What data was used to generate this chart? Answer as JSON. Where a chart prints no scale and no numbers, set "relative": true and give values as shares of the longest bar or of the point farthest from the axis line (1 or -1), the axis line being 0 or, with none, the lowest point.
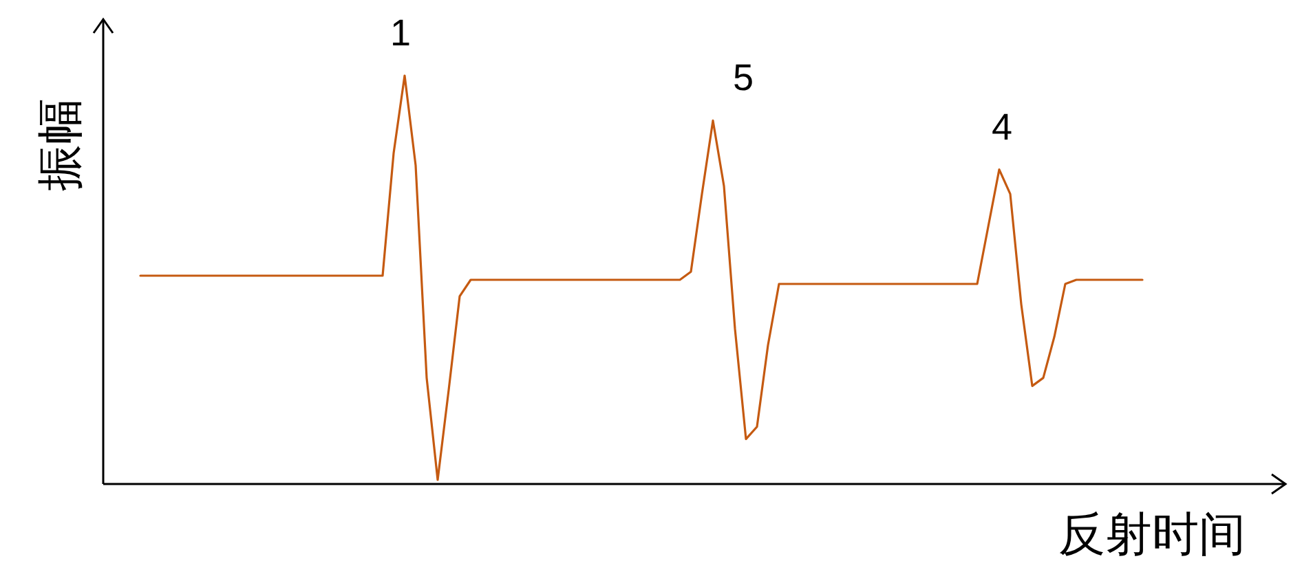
{
  "chart_data": {
    "type": "line",
    "xlabel": "反射时间",
    "ylabel": "振幅",
    "annotations": [
      "1",
      "5",
      "4"
    ],
    "categories": [
      null,
      null,
      null,
      null,
      null,
      null,
      null,
      null,
      null,
      null,
      null,
      null,
      null,
      null,
      null,
      null,
      null,
      null,
      null,
      null,
      null,
      null,
      null,
      null,
      null,
      null,
      null,
      null,
      null,
      null,
      null,
      null,
      null,
      null,
      null,
      null,
      null,
      null,
      null,
      null,
      null,
      null,
      null,
      null,
      null,
      null,
      null,
      null,
      null,
      null,
      null,
      null,
      null,
      null,
      null,
      null,
      null,
      null,
      null,
      null,
      null,
      null,
      null,
      null,
      null,
      null,
      null,
      null,
      null,
      null,
      null,
      null,
      null,
      null,
      null,
      null,
      null,
      null,
      null,
      null,
      null,
      null,
      null,
      null,
      null,
      null,
      null,
      null,
      null,
      null,
      null,
      null
    ],
    "series": [
      {
        "color": "#c55a11",
        "values": [
          0.51,
          0.51,
          0.51,
          0.51,
          0.51,
          0.51,
          0.51,
          0.51,
          0.51,
          0.51,
          0.51,
          0.51,
          0.51,
          0.51,
          0.51,
          0.51,
          0.51,
          0.51,
          0.51,
          0.51,
          0.51,
          0.51,
          0.51,
          0.81,
          1,
          0.78,
          0.26,
          0.01,
          0.23,
          0.46,
          0.5,
          0.5,
          0.5,
          0.5,
          0.5,
          0.5,
          0.5,
          0.5,
          0.5,
          0.5,
          0.5,
          0.5,
          0.5,
          0.5,
          0.5,
          0.5,
          0.5,
          0.5,
          0.5,
          0.5,
          0.52,
          0.71,
          0.89,
          0.73,
          0.38,
          0.11,
          0.14,
          0.34,
          0.49,
          0.49,
          0.49,
          0.49,
          0.49,
          0.49,
          0.49,
          0.49,
          0.49,
          0.49,
          0.49,
          0.49,
          0.49,
          0.49,
          0.49,
          0.49,
          0.49,
          0.49,
          0.49,
          0.63,
          0.77,
          0.71,
          0.44,
          0.24,
          0.26,
          0.36,
          0.49,
          0.5,
          0.5,
          0.5,
          0.5,
          0.5,
          0.5,
          0.5
        ]
      }
    ],
    "relative": true
  }
}
